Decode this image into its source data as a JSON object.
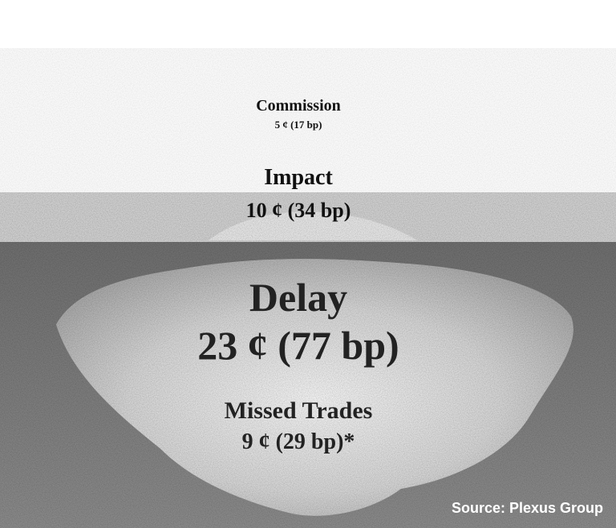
{
  "layers": [
    {
      "label": "Commission",
      "value": "5 ¢ (17 bp)"
    },
    {
      "label": "Impact",
      "value": "10 ¢ (34 bp)"
    },
    {
      "label": "Delay",
      "value": "23 ¢ (77 bp)"
    },
    {
      "label": "Missed Trades",
      "value": "9 ¢ (29 bp)*"
    }
  ],
  "source": "Source: Plexus Group"
}
